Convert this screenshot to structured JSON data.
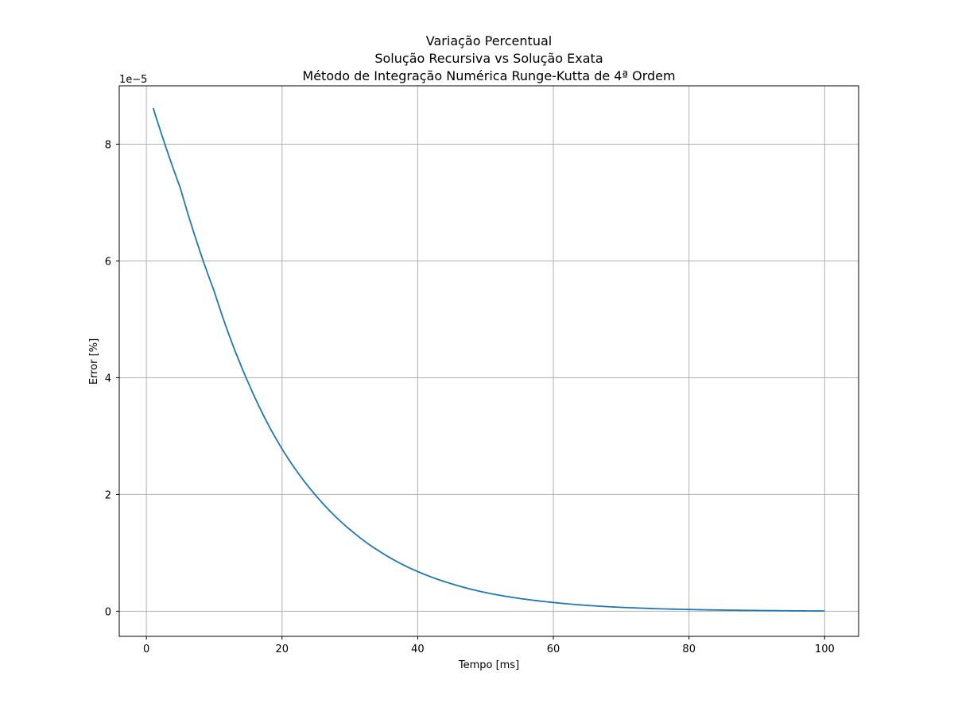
{
  "chart_data": {
    "type": "line",
    "title_lines": [
      "Variação Percentual",
      "Solução Recursiva vs Solução Exata",
      "Método de Integração Numérica Runge-Kutta de 4ª Ordem"
    ],
    "xlabel": "Tempo [ms]",
    "ylabel": "Error [%]",
    "y_offset_label": "1e−5",
    "xlim": [
      -4,
      105
    ],
    "ylim": [
      -0.43,
      9.0
    ],
    "x_ticks": [
      0,
      20,
      40,
      60,
      80,
      100
    ],
    "x_tick_labels": [
      "0",
      "20",
      "40",
      "60",
      "80",
      "100"
    ],
    "y_ticks": [
      0,
      2,
      4,
      6,
      8
    ],
    "y_tick_labels": [
      "0",
      "2",
      "4",
      "6",
      "8"
    ],
    "y_scale_note": "values in units of 1e-5",
    "grid": true,
    "line_color": "#1f77b4",
    "series": [
      {
        "x": [
          1,
          5,
          10,
          15,
          20,
          25,
          30,
          35,
          40,
          45,
          50,
          55,
          60,
          65,
          70,
          75,
          80,
          85,
          90,
          95,
          100
        ],
        "values": [
          8.62,
          7.25,
          5.48,
          3.92,
          2.78,
          1.98,
          1.4,
          0.98,
          0.68,
          0.47,
          0.32,
          0.22,
          0.15,
          0.1,
          0.067,
          0.045,
          0.03,
          0.02,
          0.013,
          0.008,
          0.004
        ]
      }
    ]
  }
}
